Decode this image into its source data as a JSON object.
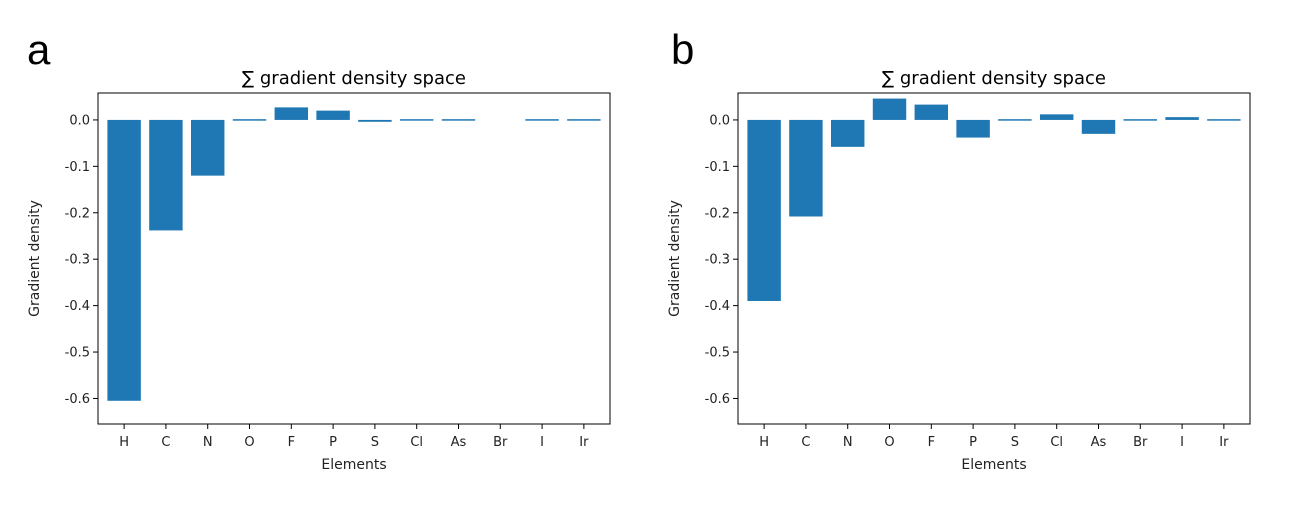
{
  "panels": [
    {
      "letter": "a",
      "chart_data": {
        "type": "bar",
        "title": "∑ gradient density space",
        "xlabel": "Elements",
        "ylabel": "Gradient density",
        "categories": [
          "H",
          "C",
          "N",
          "O",
          "F",
          "P",
          "S",
          "Cl",
          "As",
          "Br",
          "I",
          "Ir"
        ],
        "values": [
          -0.605,
          -0.238,
          -0.12,
          0.003,
          0.027,
          0.02,
          -0.004,
          -0.003,
          0.003,
          0.0,
          0.002,
          0.002
        ],
        "ylim": [
          -0.655,
          0.058
        ],
        "yticks": [
          0.0,
          -0.1,
          -0.2,
          -0.3,
          -0.4,
          -0.5,
          -0.6
        ],
        "ytick_labels": [
          "0.0",
          "-0.1",
          "-0.2",
          "-0.3",
          "-0.4",
          "-0.5",
          "-0.6"
        ],
        "bar_color": "#1f77b4",
        "grid": false
      }
    },
    {
      "letter": "b",
      "chart_data": {
        "type": "bar",
        "title": "∑ gradient density space",
        "xlabel": "Elements",
        "ylabel": "Gradient density",
        "categories": [
          "H",
          "C",
          "N",
          "O",
          "F",
          "P",
          "S",
          "Cl",
          "As",
          "Br",
          "I",
          "Ir"
        ],
        "values": [
          -0.39,
          -0.208,
          -0.058,
          0.046,
          0.033,
          -0.038,
          0.002,
          0.012,
          -0.03,
          -0.002,
          0.006,
          -0.002
        ],
        "ylim": [
          -0.655,
          0.058
        ],
        "yticks": [
          0.0,
          -0.1,
          -0.2,
          -0.3,
          -0.4,
          -0.5,
          -0.6
        ],
        "ytick_labels": [
          "0.0",
          "-0.1",
          "-0.2",
          "-0.3",
          "-0.4",
          "-0.5",
          "-0.6"
        ],
        "bar_color": "#1f77b4",
        "grid": false
      }
    }
  ]
}
